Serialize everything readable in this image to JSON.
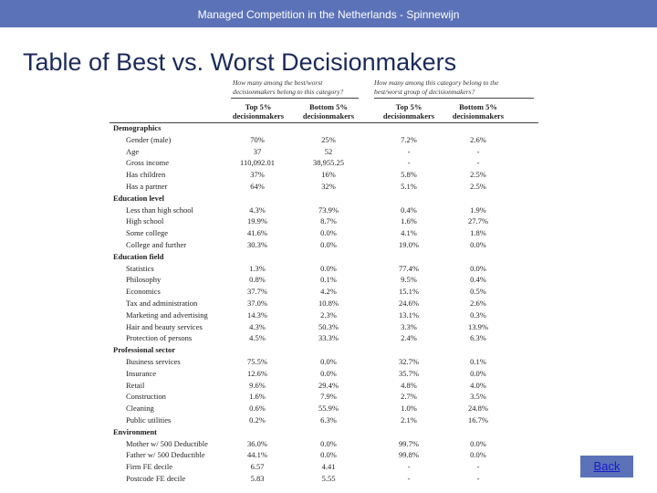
{
  "header": {
    "text": "Managed Competition in the Netherlands - Spinnewijn"
  },
  "title": "Table of Best vs. Worst Decisionmakers",
  "table": {
    "question_left": "How many among the best/worst decisionmakers belong to this category?",
    "question_right": "How many among this category belong to the best/worst group of decisionmakers?",
    "columns": [
      "Top 5% decisionmakers",
      "Bottom 5% decisionmakers",
      "Top 5% decisionmakers",
      "Bottom 5% decisionmakers"
    ],
    "rows": [
      {
        "label": "Demographics",
        "section": true,
        "values": [
          "",
          "",
          "",
          ""
        ]
      },
      {
        "label": "Gender (male)",
        "values": [
          "70%",
          "25%",
          "7.2%",
          "2.6%"
        ]
      },
      {
        "label": "Age",
        "values": [
          "37",
          "52",
          "-",
          "-"
        ]
      },
      {
        "label": "Gross income",
        "values": [
          "110,092.01",
          "38,955.25",
          "-",
          "-"
        ]
      },
      {
        "label": "Has children",
        "values": [
          "37%",
          "16%",
          "5.8%",
          "2.5%"
        ]
      },
      {
        "label": "Has a partner",
        "values": [
          "64%",
          "32%",
          "5.1%",
          "2.5%"
        ]
      },
      {
        "label": "Education level",
        "section": true,
        "values": [
          "",
          "",
          "",
          ""
        ]
      },
      {
        "label": "Less than high school",
        "values": [
          "4.3%",
          "73.9%",
          "0.4%",
          "1.9%"
        ]
      },
      {
        "label": "High school",
        "values": [
          "19.9%",
          "8.7%",
          "1.6%",
          "27.7%"
        ]
      },
      {
        "label": "Some college",
        "values": [
          "41.6%",
          "0.0%",
          "4.1%",
          "1.8%"
        ]
      },
      {
        "label": "College and further",
        "values": [
          "30.3%",
          "0.0%",
          "19.0%",
          "0.0%"
        ]
      },
      {
        "label": "Education field",
        "section": true,
        "values": [
          "",
          "",
          "",
          ""
        ]
      },
      {
        "label": "Statistics",
        "values": [
          "1.3%",
          "0.0%",
          "77.4%",
          "0.0%"
        ]
      },
      {
        "label": "Philosophy",
        "values": [
          "0.8%",
          "0.1%",
          "9.5%",
          "0.4%"
        ]
      },
      {
        "label": "Economics",
        "values": [
          "37.7%",
          "4.2%",
          "15.1%",
          "0.5%"
        ]
      },
      {
        "label": "Tax and administration",
        "values": [
          "37.0%",
          "10.8%",
          "24.6%",
          "2.6%"
        ]
      },
      {
        "label": "Marketing and advertising",
        "values": [
          "14.3%",
          "2.3%",
          "13.1%",
          "0.3%"
        ]
      },
      {
        "label": "Hair and beauty services",
        "values": [
          "4.3%",
          "50.3%",
          "3.3%",
          "13.9%"
        ]
      },
      {
        "label": "Protection of persons",
        "values": [
          "4.5%",
          "33.3%",
          "2.4%",
          "6.3%"
        ]
      },
      {
        "label": "Professional sector",
        "section": true,
        "values": [
          "",
          "",
          "",
          ""
        ]
      },
      {
        "label": "Business services",
        "values": [
          "75.5%",
          "0.0%",
          "32.7%",
          "0.1%"
        ]
      },
      {
        "label": "Insurance",
        "values": [
          "12.6%",
          "0.0%",
          "35.7%",
          "0.0%"
        ]
      },
      {
        "label": "Retail",
        "values": [
          "9.6%",
          "29.4%",
          "4.8%",
          "4.0%"
        ]
      },
      {
        "label": "Construction",
        "values": [
          "1.6%",
          "7.9%",
          "2.7%",
          "3.5%"
        ]
      },
      {
        "label": "Cleaning",
        "values": [
          "0.6%",
          "55.9%",
          "1.0%",
          "24.8%"
        ]
      },
      {
        "label": "Public utilities",
        "values": [
          "0.2%",
          "6.3%",
          "2.1%",
          "16.7%"
        ]
      },
      {
        "label": "Environment",
        "section": true,
        "values": [
          "",
          "",
          "",
          ""
        ]
      },
      {
        "label": "Mother w/ 500 Deductible",
        "values": [
          "36.0%",
          "0.0%",
          "99.7%",
          "0.0%"
        ]
      },
      {
        "label": "Father w/ 500 Deductible",
        "values": [
          "44.1%",
          "0.0%",
          "99.8%",
          "0.0%"
        ]
      },
      {
        "label": "Firm FE decile",
        "values": [
          "6.57",
          "4.41",
          "-",
          "-"
        ]
      },
      {
        "label": "Postcode FE decile",
        "values": [
          "5.83",
          "5.55",
          "-",
          "-"
        ]
      }
    ]
  },
  "back_link": "Back"
}
